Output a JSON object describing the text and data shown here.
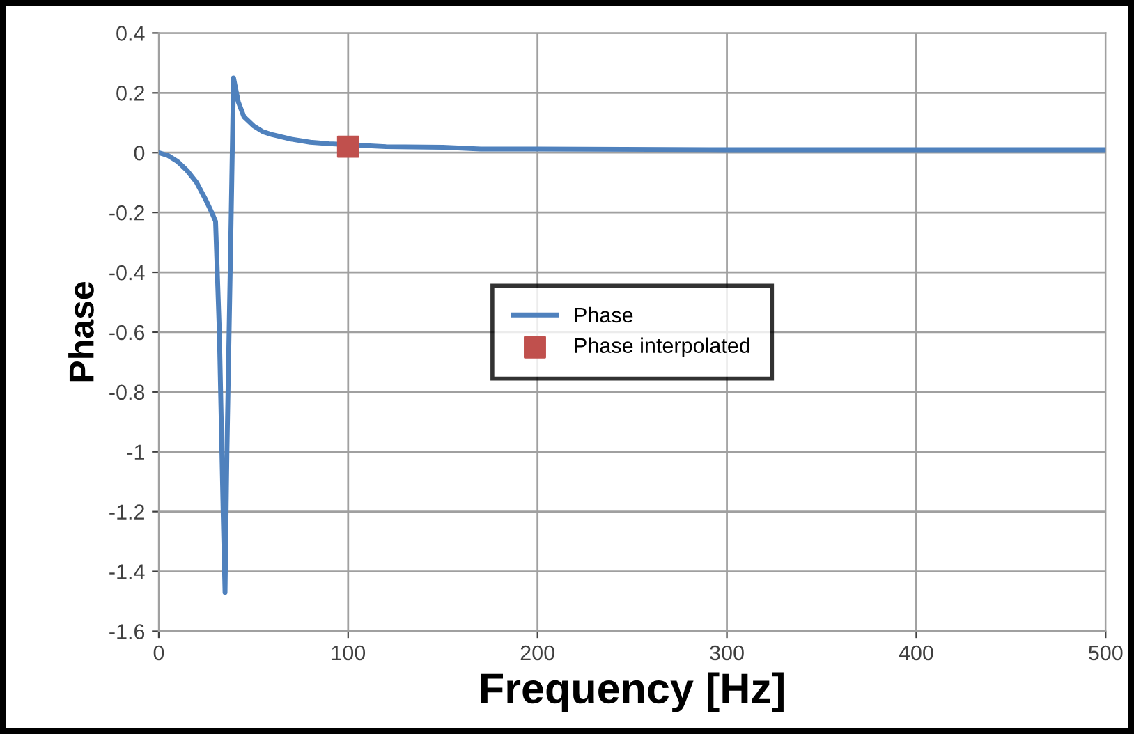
{
  "chart_data": {
    "type": "line",
    "xlabel": "Frequency [Hz]",
    "ylabel": "Phase",
    "xlim": [
      0,
      500
    ],
    "xticks": [
      0,
      100,
      200,
      300,
      400,
      500
    ],
    "ylim": [
      -1.6,
      0.4
    ],
    "yticks": [
      -1.6,
      -1.4,
      -1.2,
      -1,
      -0.8,
      -0.6,
      -0.4,
      -0.2,
      0,
      0.2,
      0.4
    ],
    "grid": true,
    "legend": "center",
    "series": [
      {
        "name": "Phase",
        "color": "#4f81bd",
        "marker": "none",
        "x": [
          0,
          5,
          10,
          15,
          20,
          25,
          28,
          30,
          32,
          34,
          35,
          36,
          38,
          39.5,
          42,
          45,
          50,
          55,
          60,
          70,
          80,
          90,
          120,
          150,
          170,
          200,
          300,
          400,
          500
        ],
        "values": [
          0,
          -0.01,
          -0.03,
          -0.06,
          -0.1,
          -0.16,
          -0.2,
          -0.23,
          -0.6,
          -1.2,
          -1.47,
          -1.0,
          -0.3,
          0.25,
          0.17,
          0.12,
          0.09,
          0.07,
          0.06,
          0.045,
          0.035,
          0.03,
          0.02,
          0.018,
          0.012,
          0.012,
          0.01,
          0.01,
          0.01
        ]
      },
      {
        "name": "Phase interpolated",
        "type": "scatter",
        "color": "#c0504d",
        "marker": "square",
        "x": [
          100
        ],
        "values": [
          0.02
        ]
      }
    ]
  }
}
